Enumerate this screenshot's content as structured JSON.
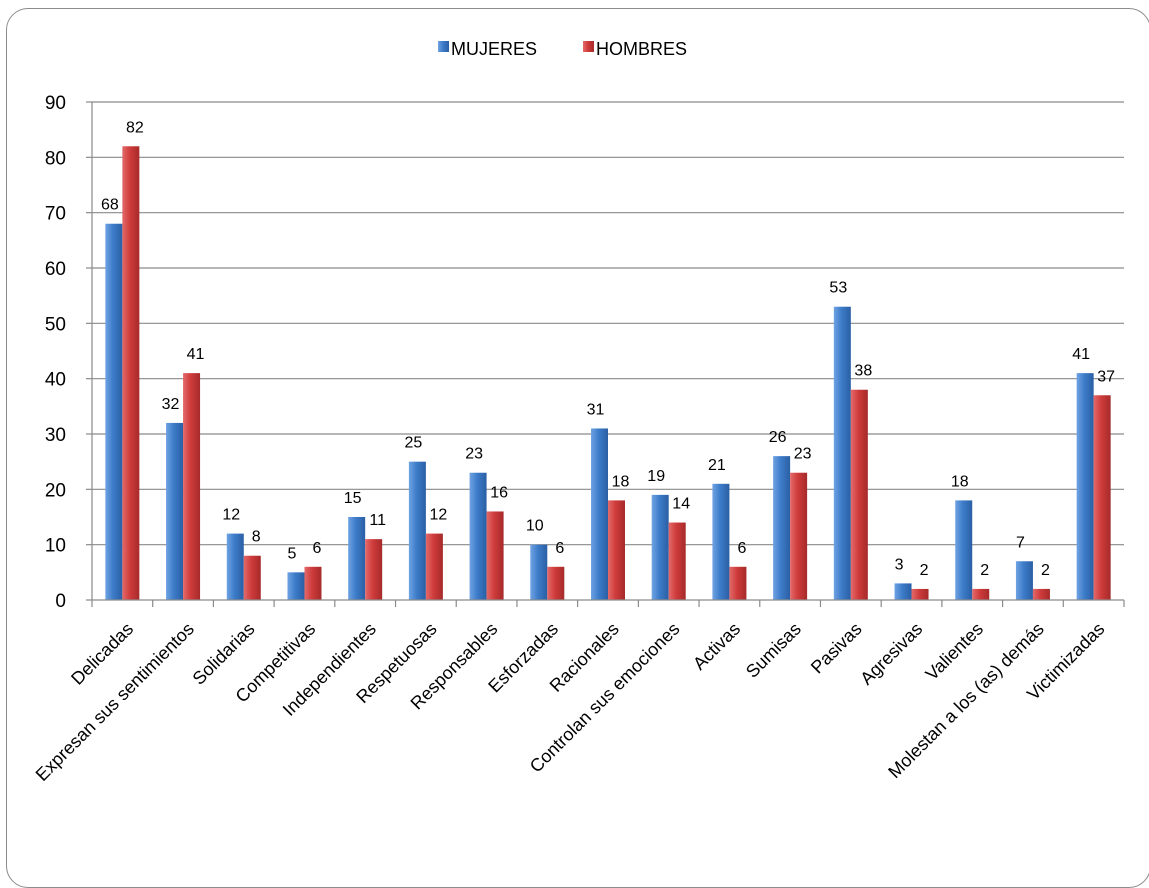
{
  "chart_data": {
    "type": "bar",
    "title": "",
    "xlabel": "",
    "ylabel": "",
    "ylim": [
      0,
      90
    ],
    "yticks": [
      0,
      10,
      20,
      30,
      40,
      50,
      60,
      70,
      80,
      90
    ],
    "grid": true,
    "legend_position": "top-center",
    "categories": [
      "Delicadas",
      "Expresan sus  sentimientos",
      "Solidarias",
      "Competitivas",
      "Independientes",
      "Respetuosas",
      "Responsables",
      "Esforzadas",
      "Racionales",
      "Controlan sus emociones",
      "Activas",
      "Sumisas",
      "Pasivas",
      "Agresivas",
      "Valientes",
      "Molestan a los (as) demás",
      "Victimizadas"
    ],
    "series": [
      {
        "name": "MUJERES",
        "color": "#3d7cc9",
        "values": [
          68,
          32,
          12,
          5,
          15,
          25,
          23,
          10,
          31,
          19,
          21,
          26,
          53,
          3,
          18,
          7,
          41
        ]
      },
      {
        "name": "HOMBRES",
        "color": "#cf3b3b",
        "values": [
          82,
          41,
          8,
          6,
          11,
          12,
          16,
          6,
          18,
          14,
          6,
          23,
          38,
          2,
          2,
          2,
          37
        ]
      }
    ]
  }
}
